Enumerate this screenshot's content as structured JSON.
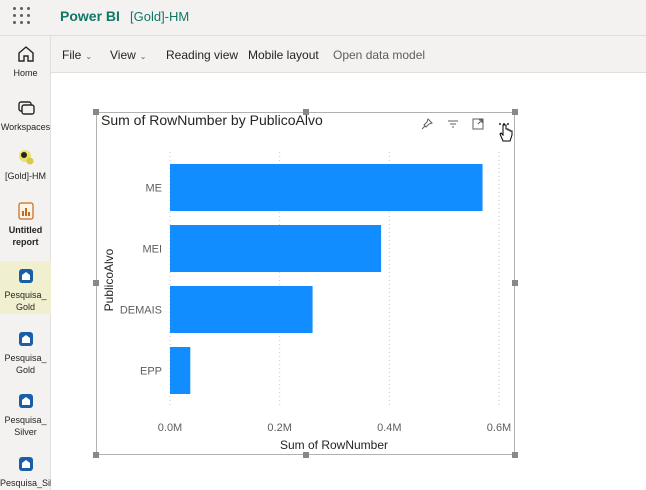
{
  "app": {
    "brand": "Power BI",
    "workspace": "[Gold]-HM"
  },
  "leftnav": {
    "items": [
      {
        "label": "Home",
        "icon": "home-icon"
      },
      {
        "label": "Workspaces",
        "icon": "workspaces-icon"
      },
      {
        "label": "[Gold]-HM",
        "icon": "workspace-avatar-icon"
      },
      {
        "label": "Untitled report",
        "icon": "report-icon"
      },
      {
        "label": "Pesquisa_Gold",
        "icon": "semantic-model-icon"
      },
      {
        "label": "Pesquisa_Gold",
        "icon": "semantic-model-icon"
      },
      {
        "label": "Pesquisa_Silver",
        "icon": "semantic-model-icon"
      },
      {
        "label": "Pesquisa_Sil",
        "icon": "semantic-model-icon"
      }
    ]
  },
  "toolbar": {
    "file": "File",
    "view": "View",
    "reading_view": "Reading view",
    "mobile_layout": "Mobile layout",
    "open_data_model": "Open data model"
  },
  "visual": {
    "pin_icon": "pin-icon",
    "filter_icon": "filter-icon",
    "focus_icon": "focus-mode-icon",
    "more_icon": "more-options-icon"
  },
  "chart_data": {
    "type": "bar",
    "orientation": "horizontal",
    "title": "Sum of RowNumber by PublicoAlvo",
    "xlabel": "Sum of RowNumber",
    "ylabel": "PublicoAlvo",
    "categories": [
      "ME",
      "MEI",
      "DEMAIS",
      "EPP"
    ],
    "values": [
      0.57,
      0.385,
      0.26,
      0.037
    ],
    "xlim": [
      0,
      0.6
    ],
    "xticks": [
      0,
      0.2,
      0.4,
      0.6
    ],
    "xtick_labels": [
      "0.0M",
      "0.2M",
      "0.4M",
      "0.6M"
    ],
    "bar_color": "#118dff",
    "grid": "vertical-dotted",
    "legend": "none"
  }
}
